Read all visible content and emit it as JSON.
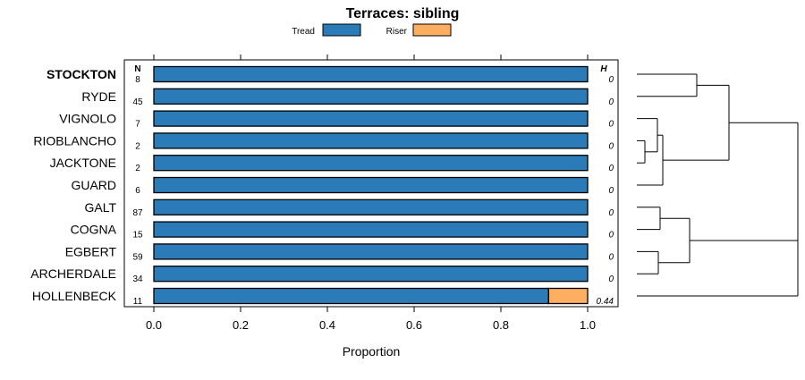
{
  "chart_data": {
    "type": "bar",
    "orientation": "horizontal",
    "stacked": true,
    "title": "Terraces: sibling",
    "xlabel": "Proportion",
    "xlim": [
      0,
      1
    ],
    "xticks": [
      "0.0",
      "0.2",
      "0.4",
      "0.6",
      "0.8",
      "1.0"
    ],
    "n_header": "N",
    "h_header": "H",
    "legend": [
      {
        "name": "Tread",
        "color": "#2b7bb9"
      },
      {
        "name": "Riser",
        "color": "#fdae61"
      }
    ],
    "categories": [
      "STOCKTON",
      "RYDE",
      "VIGNOLO",
      "RIOBLANCHO",
      "JACKTONE",
      "GUARD",
      "GALT",
      "COGNA",
      "EGBERT",
      "ARCHERDALE",
      "HOLLENBECK"
    ],
    "highlighted": "STOCKTON",
    "n": [
      "8",
      "45",
      "7",
      "2",
      "2",
      "6",
      "87",
      "15",
      "59",
      "34",
      "11"
    ],
    "h": [
      "0",
      "0",
      "0",
      "0",
      "0",
      "0",
      "0",
      "0",
      "0",
      "0",
      "0.44"
    ],
    "series": [
      {
        "name": "Tread",
        "values": [
          1,
          1,
          1,
          1,
          1,
          1,
          1,
          1,
          1,
          1,
          0.91
        ]
      },
      {
        "name": "Riser",
        "values": [
          0,
          0,
          0,
          0,
          0,
          0,
          0,
          0,
          0,
          0,
          0.09
        ]
      }
    ],
    "dendrogram": true
  }
}
